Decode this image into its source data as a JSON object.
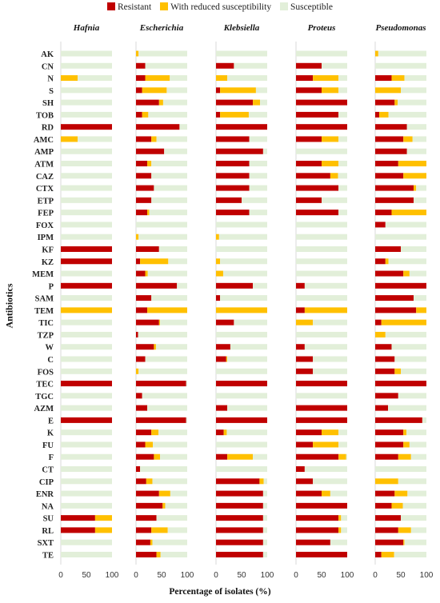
{
  "chart_data": {
    "type": "bar",
    "orientation": "horizontal",
    "stacked": true,
    "xlabel": "Percentage of isolates (%)",
    "ylabel": "Antibiotics",
    "xlim": [
      0,
      100
    ],
    "xticks": [
      "0",
      "50",
      "100"
    ],
    "legend": [
      {
        "name": "Resistant",
        "color": "#c00000"
      },
      {
        "name": "With reduced susceptibility",
        "color": "#ffc000"
      },
      {
        "name": "Susceptible",
        "color": "#e2efd9"
      }
    ],
    "legend_position": "top",
    "categories": [
      "AK",
      "CN",
      "N",
      "S",
      "SH",
      "TOB",
      "RD",
      "AMC",
      "AMP",
      "ATM",
      "CAZ",
      "CTX",
      "ETP",
      "FEP",
      "FOX",
      "IPM",
      "KF",
      "KZ",
      "MEM",
      "P",
      "SAM",
      "TEM",
      "TIC",
      "TZP",
      "W",
      "C",
      "FOS",
      "TEC",
      "TGC",
      "AZM",
      "E",
      "K",
      "FU",
      "F",
      "CT",
      "CIP",
      "ENR",
      "NA",
      "SU",
      "RL",
      "SXT",
      "TE"
    ],
    "panels": [
      {
        "title": "Hafnia",
        "resistant": [
          0,
          0,
          0,
          0,
          0,
          0,
          100,
          0,
          0,
          0,
          0,
          0,
          0,
          0,
          0,
          0,
          100,
          100,
          0,
          100,
          0,
          0,
          0,
          0,
          0,
          0,
          0,
          100,
          0,
          0,
          100,
          0,
          0,
          0,
          0,
          0,
          0,
          0,
          67,
          67,
          0,
          0
        ],
        "reduced": [
          0,
          0,
          33,
          0,
          0,
          0,
          0,
          33,
          0,
          0,
          0,
          0,
          0,
          0,
          0,
          0,
          0,
          0,
          0,
          0,
          0,
          100,
          0,
          0,
          0,
          0,
          0,
          0,
          0,
          0,
          0,
          0,
          0,
          0,
          0,
          0,
          0,
          0,
          33,
          33,
          0,
          0
        ]
      },
      {
        "title": "Escherichia",
        "resistant": [
          0,
          18,
          18,
          12,
          45,
          12,
          85,
          30,
          55,
          22,
          30,
          35,
          30,
          22,
          0,
          0,
          45,
          8,
          18,
          80,
          30,
          22,
          45,
          4,
          35,
          18,
          0,
          98,
          12,
          22,
          98,
          30,
          18,
          35,
          8,
          20,
          45,
          52,
          40,
          30,
          28,
          40
        ],
        "reduced": [
          5,
          0,
          48,
          48,
          8,
          12,
          0,
          10,
          0,
          8,
          0,
          0,
          0,
          4,
          0,
          5,
          0,
          55,
          5,
          0,
          0,
          78,
          2,
          0,
          4,
          0,
          5,
          0,
          0,
          0,
          0,
          14,
          15,
          12,
          0,
          12,
          22,
          5,
          0,
          32,
          4,
          8
        ]
      },
      {
        "title": "Klebsiella",
        "resistant": [
          0,
          35,
          0,
          8,
          72,
          8,
          100,
          65,
          92,
          65,
          65,
          65,
          50,
          65,
          0,
          0,
          0,
          0,
          0,
          72,
          8,
          0,
          35,
          0,
          28,
          20,
          0,
          100,
          0,
          22,
          100,
          15,
          0,
          22,
          0,
          85,
          92,
          92,
          92,
          92,
          92,
          92
        ],
        "reduced": [
          0,
          0,
          22,
          70,
          14,
          56,
          0,
          0,
          0,
          0,
          0,
          0,
          0,
          0,
          0,
          6,
          0,
          8,
          14,
          0,
          0,
          100,
          0,
          0,
          0,
          2,
          0,
          0,
          0,
          0,
          0,
          6,
          0,
          50,
          0,
          8,
          0,
          0,
          0,
          0,
          0,
          0
        ]
      },
      {
        "title": "Proteus",
        "resistant": [
          0,
          50,
          33,
          50,
          100,
          83,
          100,
          50,
          0,
          50,
          67,
          83,
          50,
          83,
          0,
          0,
          0,
          0,
          0,
          17,
          0,
          17,
          0,
          0,
          17,
          33,
          33,
          100,
          0,
          100,
          100,
          50,
          33,
          83,
          17,
          33,
          50,
          100,
          83,
          83,
          67,
          100
        ],
        "reduced": [
          0,
          0,
          50,
          33,
          0,
          0,
          0,
          33,
          0,
          33,
          15,
          0,
          0,
          0,
          0,
          0,
          0,
          0,
          0,
          0,
          0,
          83,
          33,
          0,
          0,
          0,
          0,
          0,
          0,
          0,
          0,
          33,
          50,
          15,
          0,
          0,
          17,
          0,
          5,
          5,
          0,
          0
        ]
      },
      {
        "title": "Pseudomonas",
        "resistant": [
          0,
          0,
          32,
          0,
          38,
          8,
          62,
          55,
          62,
          45,
          55,
          75,
          75,
          32,
          20,
          0,
          50,
          20,
          55,
          100,
          75,
          80,
          12,
          0,
          32,
          38,
          38,
          100,
          45,
          25,
          92,
          55,
          55,
          45,
          0,
          0,
          38,
          32,
          50,
          45,
          55,
          12
        ],
        "reduced": [
          6,
          0,
          25,
          50,
          6,
          18,
          0,
          18,
          0,
          55,
          45,
          5,
          0,
          68,
          0,
          0,
          0,
          6,
          12,
          0,
          0,
          20,
          88,
          20,
          0,
          0,
          12,
          0,
          0,
          0,
          0,
          6,
          12,
          25,
          0,
          45,
          25,
          22,
          0,
          25,
          2,
          25
        ]
      }
    ]
  }
}
